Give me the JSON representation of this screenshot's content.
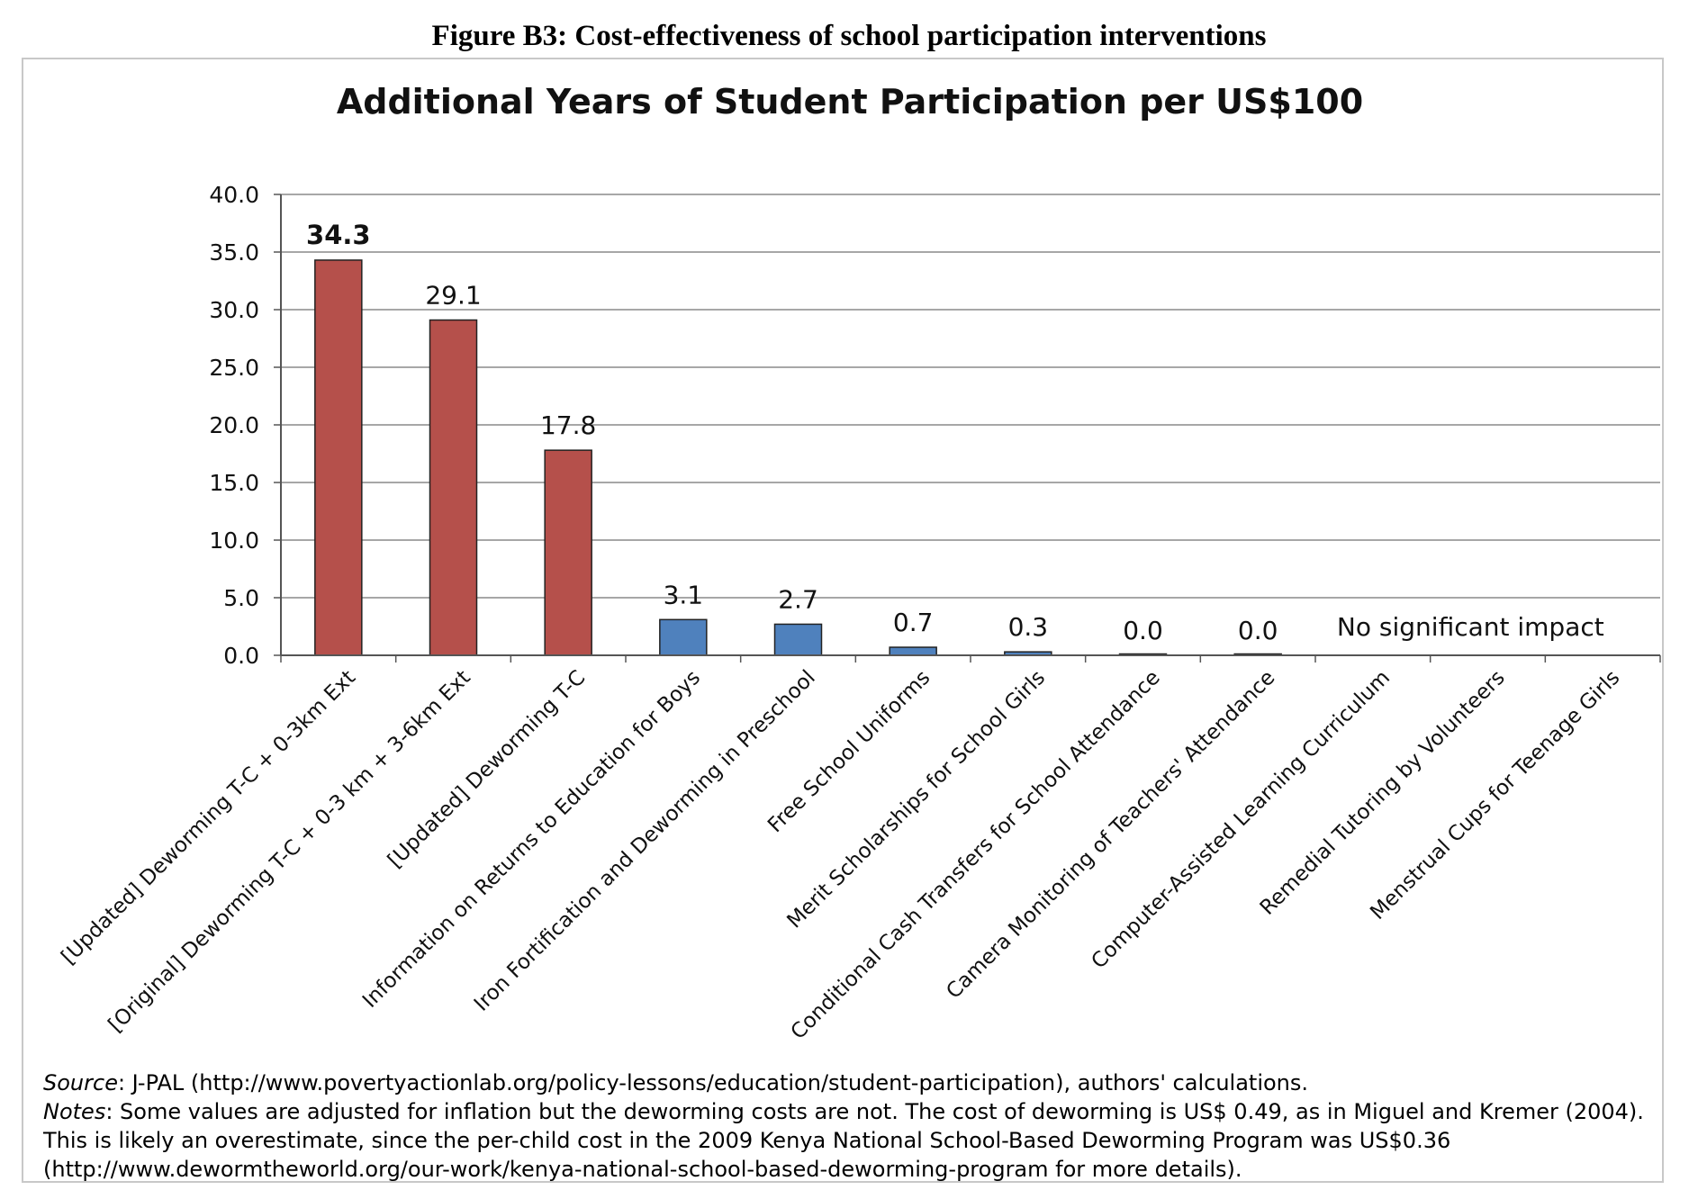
{
  "figure_caption": "Figure B3: Cost-effectiveness of school participation interventions",
  "chart_data": {
    "type": "bar",
    "title": "Additional Years of Student Participation per US$100",
    "xlabel": "",
    "ylabel": "",
    "ylim": [
      0,
      40
    ],
    "yticks": [
      "0.0",
      "5.0",
      "10.0",
      "15.0",
      "20.0",
      "25.0",
      "30.0",
      "35.0",
      "40.0"
    ],
    "grid": true,
    "categories": [
      "[Updated] Deworming T-C + 0-3km Ext",
      "[Original] Deworming T-C + 0-3 km + 3-6km Ext",
      "[Updated] Deworming T-C",
      "Information on Returns to Education for Boys",
      "Iron Fortification and Deworming in Preschool",
      "Free School Uniforms",
      "Merit Scholarships for School Girls",
      "Conditional Cash Transfers for School Attendance",
      "Camera Monitoring of Teachers' Attendance",
      "Computer-Assisted Learning Curriculum",
      "Remedial Tutoring by Volunteers",
      "Menstrual Cups for Teenage Girls"
    ],
    "values": [
      34.3,
      29.1,
      17.8,
      3.1,
      2.7,
      0.7,
      0.3,
      0.0,
      0.0,
      null,
      null,
      null
    ],
    "data_labels": [
      "34.3",
      "29.1",
      "17.8",
      "3.1",
      "2.7",
      "0.7",
      "0.3",
      "0.0",
      "0.0",
      "",
      "",
      ""
    ],
    "bar_groups": [
      "deworming",
      "deworming",
      "deworming",
      "other",
      "other",
      "other",
      "other",
      "other",
      "other",
      "other",
      "other",
      "other"
    ],
    "colors": {
      "deworming": "#b5504b",
      "other": "#4f81bd"
    },
    "annotation": "No significant impact"
  },
  "notes": {
    "source_label": "Source",
    "source_text": ": J-PAL (http://www.povertyactionlab.org/policy-lessons/education/student-participation), authors' calculations.",
    "notes_label": "Notes",
    "notes_text": ": Some values are adjusted for inflation but the deworming costs are not. The cost of deworming is US$ 0.49, as in Miguel and Kremer (2004). This is likely an overestimate, since the per-child cost in the 2009 Kenya National School-Based Deworming Program was US$0.36 (http://www.dewormtheworld.org/our-work/kenya-national-school-based-deworming-program for more details)."
  }
}
